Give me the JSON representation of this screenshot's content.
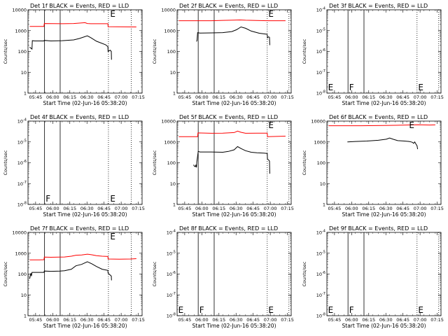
{
  "chart_data": [
    {
      "type": "line",
      "title": "Det 1f BLACK = Events, RED = LLD",
      "xlabel": "Start Time (02-Jun-16 05:38:20)",
      "ylabel": "Counts/sec",
      "x_ticks": [
        "05:45",
        "06:00",
        "06:15",
        "06:30",
        "06:45",
        "07:00",
        "07:15"
      ],
      "x_tick_minutes": [
        6.67,
        21.67,
        36.67,
        51.67,
        66.67,
        81.67,
        96.67
      ],
      "xlim": [
        0,
        100
      ],
      "yscale": "log",
      "ylim": [
        1,
        10000
      ],
      "y_ticks": [
        "1",
        "10",
        "100",
        "1000",
        "10000"
      ],
      "solid_lines_minutes": [
        14.5,
        28.2
      ],
      "dotted_lines_minutes": [
        70.5,
        90.5
      ],
      "markers": [
        {
          "text": "E",
          "x": 72,
          "pos": "top"
        }
      ],
      "series": [
        {
          "color": "#000000",
          "x": [
            1.5,
            3.5,
            3.8,
            6,
            14,
            14.3,
            20,
            30,
            40,
            45,
            52,
            55,
            60,
            68,
            70,
            70.2,
            72,
            73,
            73.2
          ],
          "y": [
            160,
            130,
            330,
            320,
            320,
            340,
            320,
            330,
            360,
            420,
            560,
            460,
            310,
            210,
            170,
            100,
            115,
            100,
            40
          ]
        },
        {
          "color": "#ff0000",
          "x": [
            1.5,
            14,
            14.3,
            30,
            40,
            45,
            50,
            52,
            55,
            60,
            70,
            70.2,
            95
          ],
          "y": [
            1600,
            1600,
            2200,
            2150,
            2200,
            2300,
            2400,
            2200,
            2150,
            2150,
            2150,
            1550,
            1500
          ]
        }
      ]
    },
    {
      "type": "line",
      "title": "Det 2f BLACK = Events, RED = LLD",
      "xlabel": "Start Time (02-Jun-16 05:38:20)",
      "ylabel": "Counts/sec",
      "x_ticks": [
        "05:45",
        "06:00",
        "06:15",
        "06:30",
        "06:45",
        "07:00",
        "07:15"
      ],
      "x_tick_minutes": [
        6.67,
        21.67,
        36.67,
        51.67,
        66.67,
        81.67,
        96.67
      ],
      "xlim": [
        0,
        100
      ],
      "yscale": "log",
      "ylim": [
        1,
        10000
      ],
      "y_ticks": [
        "1",
        "10",
        "100",
        "1000",
        "10000"
      ],
      "solid_lines_minutes": [
        18.5,
        32.5
      ],
      "dotted_lines_minutes": [
        79,
        98
      ],
      "markers": [
        {
          "text": "E",
          "x": 80,
          "pos": "top"
        }
      ],
      "series": [
        {
          "color": "#000000",
          "x": [
            17,
            17.5,
            18,
            20,
            30,
            40,
            48,
            52,
            56,
            60,
            65,
            72,
            78,
            79,
            79.2,
            80,
            81,
            81.2
          ],
          "y": [
            300,
            340,
            800,
            760,
            780,
            800,
            900,
            1100,
            1500,
            1300,
            950,
            750,
            680,
            650,
            450,
            500,
            480,
            200
          ]
        },
        {
          "color": "#ff0000",
          "x": [
            1.5,
            30,
            40,
            50,
            55,
            60,
            80,
            95
          ],
          "y": [
            3000,
            3000,
            3100,
            3200,
            3250,
            3150,
            3000,
            3000
          ]
        }
      ]
    },
    {
      "type": "line",
      "title": "Det 3f BLACK = Events, RED = LLD",
      "xlabel": "Start Time (02-Jun-16 05:38:20)",
      "ylabel": "Counts/sec",
      "x_ticks": [
        "05:45",
        "06:00",
        "06:15",
        "06:30",
        "06:45",
        "07:00",
        "07:15"
      ],
      "x_tick_minutes": [
        6.67,
        21.67,
        36.67,
        51.67,
        66.67,
        81.67,
        96.67
      ],
      "xlim": [
        0,
        100
      ],
      "yscale": "log",
      "ylim": [
        1e-08,
        0.0001
      ],
      "y_ticks": [
        "10^-8",
        "10^-7",
        "10^-6",
        "10^-5",
        "10^-4"
      ],
      "solid_lines_minutes": [
        18.5,
        32.5
      ],
      "dotted_lines_minutes": [
        79,
        98
      ],
      "markers": [
        {
          "text": "E",
          "x": 1,
          "pos": "bottom"
        },
        {
          "text": "F",
          "x": 19.5,
          "pos": "bottom"
        },
        {
          "text": "E",
          "x": 80,
          "pos": "bottom"
        }
      ],
      "series": []
    },
    {
      "type": "line",
      "title": "Det 4f BLACK = Events, RED = LLD",
      "xlabel": "Start Time (02-Jun-16 05:38:20)",
      "ylabel": "Counts/sec",
      "x_ticks": [
        "05:45",
        "06:00",
        "06:15",
        "06:30",
        "06:45",
        "07:00",
        "07:15"
      ],
      "x_tick_minutes": [
        6.67,
        21.67,
        36.67,
        51.67,
        66.67,
        81.67,
        96.67
      ],
      "xlim": [
        0,
        100
      ],
      "yscale": "log",
      "ylim": [
        1e-08,
        0.0001
      ],
      "y_ticks": [
        "10^-8",
        "10^-7",
        "10^-6",
        "10^-5",
        "10^-4"
      ],
      "solid_lines_minutes": [
        14.5,
        28.2
      ],
      "dotted_lines_minutes": [
        70.5,
        90.5
      ],
      "markers": [
        {
          "text": "F",
          "x": 15.5,
          "pos": "bottom"
        },
        {
          "text": "E",
          "x": 72,
          "pos": "bottom"
        }
      ],
      "series": []
    },
    {
      "type": "line",
      "title": "Det 5f BLACK = Events, RED = LLD",
      "xlabel": "Start Time (02-Jun-16 05:38:20)",
      "ylabel": "Counts/sec",
      "x_ticks": [
        "05:45",
        "06:00",
        "06:15",
        "06:30",
        "06:45",
        "07:00",
        "07:15"
      ],
      "x_tick_minutes": [
        6.67,
        21.67,
        36.67,
        51.67,
        66.67,
        81.67,
        96.67
      ],
      "xlim": [
        0,
        100
      ],
      "yscale": "log",
      "ylim": [
        1,
        10000
      ],
      "y_ticks": [
        "1",
        "10",
        "100",
        "1000",
        "10000"
      ],
      "solid_lines_minutes": [
        18.5,
        32.5
      ],
      "dotted_lines_minutes": [
        79,
        98
      ],
      "markers": [
        {
          "text": "E",
          "x": 80,
          "pos": "top"
        }
      ],
      "series": [
        {
          "color": "#000000",
          "x": [
            14.5,
            15,
            16,
            16.5,
            17,
            17.3,
            18.5,
            20,
            30,
            40,
            45,
            50,
            53,
            56,
            60,
            65,
            70,
            76,
            79,
            79.2,
            80,
            81,
            81.2
          ],
          "y": [
            80,
            70,
            65,
            80,
            60,
            110,
            350,
            330,
            330,
            320,
            350,
            420,
            600,
            480,
            380,
            320,
            300,
            290,
            280,
            150,
            140,
            120,
            30
          ]
        },
        {
          "color": "#ff0000",
          "x": [
            1.5,
            18,
            18.3,
            30,
            40,
            50,
            53,
            56,
            60,
            70,
            79,
            79.2,
            95
          ],
          "y": [
            1800,
            1800,
            2700,
            2600,
            2650,
            2800,
            3300,
            2900,
            2600,
            2650,
            2650,
            1800,
            1900
          ]
        }
      ]
    },
    {
      "type": "line",
      "title": "Det 6f BLACK = Events, RED = LLD",
      "xlabel": "Start Time (02-Jun-16 05:38:20)",
      "ylabel": "Counts/sec",
      "x_ticks": [
        "05:45",
        "06:00",
        "06:15",
        "06:30",
        "06:45",
        "07:00",
        "07:15"
      ],
      "x_tick_minutes": [
        6.67,
        21.67,
        36.67,
        51.67,
        66.67,
        81.67,
        96.67
      ],
      "xlim": [
        0,
        100
      ],
      "yscale": "log",
      "ylim": [
        1,
        10000
      ],
      "y_ticks": [
        "1",
        "10",
        "100",
        "1000",
        "10000"
      ],
      "solid_lines_minutes": [],
      "dotted_lines_minutes": [],
      "markers": [
        {
          "text": "E",
          "x": 72,
          "pos": "top"
        }
      ],
      "series": [
        {
          "color": "#000000",
          "x": [
            18,
            25,
            35,
            45,
            52,
            55,
            58,
            62,
            68,
            72,
            74,
            75,
            76,
            77,
            78,
            79,
            79.5
          ],
          "y": [
            1000,
            1050,
            1100,
            1200,
            1350,
            1550,
            1350,
            1150,
            1100,
            1050,
            1000,
            950,
            850,
            1000,
            800,
            650,
            450
          ]
        },
        {
          "color": "#ff0000",
          "x": [
            1.5,
            30,
            50,
            60,
            70,
            75,
            80,
            90,
            95
          ],
          "y": [
            6000,
            6000,
            6200,
            6300,
            6500,
            6600,
            6700,
            6500,
            6600
          ]
        }
      ]
    },
    {
      "type": "line",
      "title": "Det 7f BLACK = Events, RED = LLD",
      "xlabel": "Start Time (02-Jun-16 05:38:20)",
      "ylabel": "Counts/sec",
      "x_ticks": [
        "05:45",
        "06:00",
        "06:15",
        "06:30",
        "06:45",
        "07:00",
        "07:15"
      ],
      "x_tick_minutes": [
        6.67,
        21.67,
        36.67,
        51.67,
        66.67,
        81.67,
        96.67
      ],
      "xlim": [
        0,
        100
      ],
      "yscale": "log",
      "ylim": [
        1,
        10000
      ],
      "y_ticks": [
        "1",
        "10",
        "100",
        "1000",
        "10000"
      ],
      "solid_lines_minutes": [
        14.5,
        28.2
      ],
      "dotted_lines_minutes": [
        70.5,
        90.5
      ],
      "markers": [
        {
          "text": "E",
          "x": 72,
          "pos": "top"
        }
      ],
      "series": [
        {
          "color": "#000000",
          "x": [
            1.5,
            2.5,
            3,
            3.5,
            14,
            14.3,
            20,
            28,
            32,
            38,
            42,
            47,
            52,
            56,
            60,
            65,
            70,
            70.2,
            72,
            73,
            73.2
          ],
          "y": [
            60,
            110,
            80,
            120,
            120,
            140,
            135,
            140,
            145,
            170,
            250,
            290,
            390,
            310,
            230,
            170,
            150,
            110,
            90,
            80,
            50
          ]
        },
        {
          "color": "#ff0000",
          "x": [
            1.5,
            10,
            14,
            14.3,
            20,
            28,
            32,
            38,
            42,
            47,
            52,
            56,
            60,
            65,
            70,
            70.2,
            80,
            90,
            95
          ],
          "y": [
            480,
            480,
            490,
            650,
            640,
            650,
            660,
            720,
            800,
            820,
            900,
            840,
            760,
            720,
            700,
            530,
            520,
            530,
            550
          ]
        }
      ]
    },
    {
      "type": "line",
      "title": "Det 8f BLACK = Events, RED = LLD",
      "xlabel": "Start Time (02-Jun-16 05:38:20)",
      "ylabel": "Counts/sec",
      "x_ticks": [
        "05:45",
        "06:00",
        "06:15",
        "06:30",
        "06:45",
        "07:00",
        "07:15"
      ],
      "x_tick_minutes": [
        6.67,
        21.67,
        36.67,
        51.67,
        66.67,
        81.67,
        96.67
      ],
      "xlim": [
        0,
        100
      ],
      "yscale": "log",
      "ylim": [
        1e-08,
        0.0001
      ],
      "y_ticks": [
        "10^-8",
        "10^-7",
        "10^-6",
        "10^-5",
        "10^-4"
      ],
      "solid_lines_minutes": [
        18.5,
        32.5
      ],
      "dotted_lines_minutes": [
        79,
        98
      ],
      "markers": [
        {
          "text": "E",
          "x": 1,
          "pos": "bottom"
        },
        {
          "text": "F",
          "x": 19.5,
          "pos": "bottom"
        },
        {
          "text": "E",
          "x": 80,
          "pos": "bottom"
        }
      ],
      "series": []
    },
    {
      "type": "line",
      "title": "Det 9f BLACK = Events, RED = LLD",
      "xlabel": "Start Time (02-Jun-16 05:38:20)",
      "ylabel": "Counts/sec",
      "x_ticks": [
        "05:45",
        "06:00",
        "06:15",
        "06:30",
        "06:45",
        "07:00",
        "07:15"
      ],
      "x_tick_minutes": [
        6.67,
        21.67,
        36.67,
        51.67,
        66.67,
        81.67,
        96.67
      ],
      "xlim": [
        0,
        100
      ],
      "yscale": "log",
      "ylim": [
        1e-08,
        0.0001
      ],
      "y_ticks": [
        "10^-8",
        "10^-7",
        "10^-6",
        "10^-5",
        "10^-4"
      ],
      "solid_lines_minutes": [
        18.5,
        32.5
      ],
      "dotted_lines_minutes": [
        79,
        98
      ],
      "markers": [
        {
          "text": "E",
          "x": 1,
          "pos": "bottom"
        },
        {
          "text": "F",
          "x": 19.5,
          "pos": "bottom"
        },
        {
          "text": "E",
          "x": 80,
          "pos": "bottom"
        }
      ],
      "series": []
    }
  ]
}
